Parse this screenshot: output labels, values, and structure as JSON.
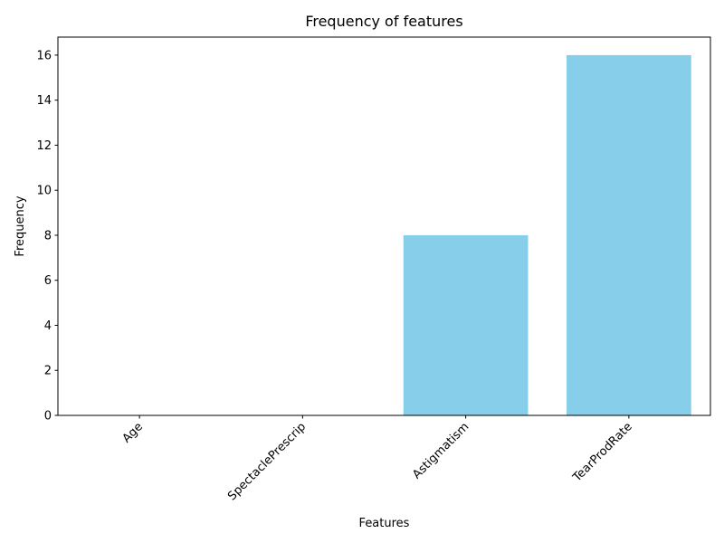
{
  "chart_data": {
    "type": "bar",
    "title": "Frequency of features",
    "xlabel": "Features",
    "ylabel": "Frequency",
    "categories": [
      "Age",
      "SpectaclePrescrip",
      "Astigmatism",
      "TearProdRate"
    ],
    "values": [
      0,
      0,
      8,
      16
    ],
    "ylim": [
      0,
      16.8
    ],
    "yticks": [
      "0",
      "2",
      "4",
      "6",
      "8",
      "10",
      "12",
      "14",
      "16"
    ],
    "bar_color": "#87ceeb",
    "grid": false,
    "legend": "none"
  }
}
